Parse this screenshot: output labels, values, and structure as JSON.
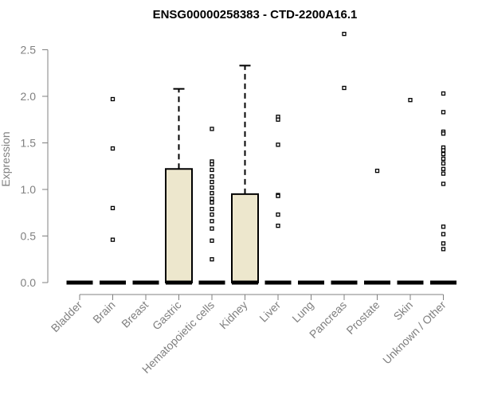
{
  "chart_data": {
    "type": "box",
    "title": "ENSG00000258383 - CTD-2200A16.1",
    "xlabel": "",
    "ylabel": "Expression",
    "ylim": [
      0,
      2.7
    ],
    "yticks": [
      0.0,
      0.5,
      1.0,
      1.5,
      2.0,
      2.5
    ],
    "ytick_labels": [
      "0.0",
      "0.5",
      "1.0",
      "1.5",
      "2.0",
      "2.5"
    ],
    "grid": false,
    "colors": {
      "box_fill": "#EDE7CD",
      "stroke": "#000000",
      "axis_text": "#808080"
    },
    "categories": [
      "Bladder",
      "Brain",
      "Breast",
      "Gastric",
      "Hematopoietic cells",
      "Kidney",
      "Liver",
      "Lung",
      "Pancreas",
      "Prostate",
      "Skin",
      "Unknown / Other"
    ],
    "boxes": [
      {
        "category": "Bladder",
        "q1": 0,
        "median": 0,
        "q3": 0,
        "whisker_low": 0,
        "whisker_high": 0,
        "outliers": []
      },
      {
        "category": "Brain",
        "q1": 0,
        "median": 0,
        "q3": 0,
        "whisker_low": 0,
        "whisker_high": 0,
        "outliers": [
          1.97,
          1.44,
          0.8,
          0.46
        ]
      },
      {
        "category": "Breast",
        "q1": 0,
        "median": 0,
        "q3": 0,
        "whisker_low": 0,
        "whisker_high": 0,
        "outliers": []
      },
      {
        "category": "Gastric",
        "q1": 0,
        "median": 0,
        "q3": 1.22,
        "whisker_low": 0,
        "whisker_high": 2.08,
        "outliers": []
      },
      {
        "category": "Hematopoietic cells",
        "q1": 0,
        "median": 0,
        "q3": 0,
        "whisker_low": 0,
        "whisker_high": 0,
        "outliers": [
          1.65,
          1.3,
          1.27,
          1.21,
          1.14,
          1.08,
          1.02,
          0.96,
          0.9,
          0.86,
          0.79,
          0.73,
          0.66,
          0.58,
          0.45,
          0.25
        ]
      },
      {
        "category": "Kidney",
        "q1": 0,
        "median": 0,
        "q3": 0.95,
        "whisker_low": 0,
        "whisker_high": 2.33,
        "outliers": []
      },
      {
        "category": "Liver",
        "q1": 0,
        "median": 0,
        "q3": 0,
        "whisker_low": 0,
        "whisker_high": 0,
        "outliers": [
          1.78,
          1.75,
          1.48,
          0.94,
          0.93,
          0.73,
          0.61
        ]
      },
      {
        "category": "Lung",
        "q1": 0,
        "median": 0,
        "q3": 0,
        "whisker_low": 0,
        "whisker_high": 0,
        "outliers": []
      },
      {
        "category": "Pancreas",
        "q1": 0,
        "median": 0,
        "q3": 0,
        "whisker_low": 0,
        "whisker_high": 0,
        "outliers": [
          2.67,
          2.09
        ]
      },
      {
        "category": "Prostate",
        "q1": 0,
        "median": 0,
        "q3": 0,
        "whisker_low": 0,
        "whisker_high": 0,
        "outliers": [
          1.2
        ]
      },
      {
        "category": "Skin",
        "q1": 0,
        "median": 0,
        "q3": 0,
        "whisker_low": 0,
        "whisker_high": 0,
        "outliers": [
          1.96
        ]
      },
      {
        "category": "Unknown / Other",
        "q1": 0,
        "median": 0,
        "q3": 0,
        "whisker_low": 0,
        "whisker_high": 0,
        "outliers": [
          2.03,
          1.83,
          1.62,
          1.6,
          1.45,
          1.42,
          1.38,
          1.33,
          1.28,
          1.22,
          1.17,
          1.06,
          0.6,
          0.52,
          0.42,
          0.36
        ]
      }
    ]
  }
}
